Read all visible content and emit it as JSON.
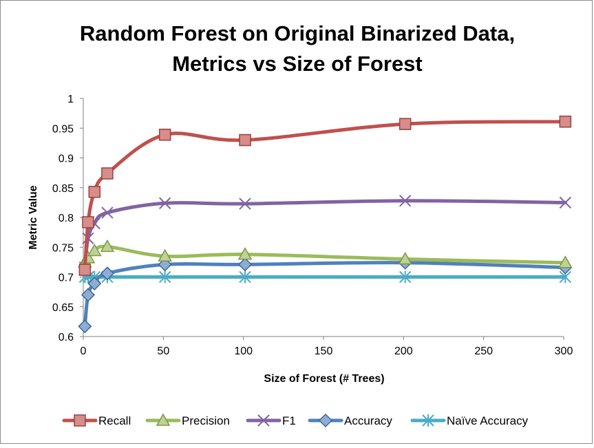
{
  "chart_data": {
    "type": "line",
    "title_lines": [
      "Random Forest on Original Binarized Data,",
      "Metrics vs Size of Forest"
    ],
    "xlabel": "Size of Forest (# Trees)",
    "ylabel": "Metric Value",
    "xlim": [
      0,
      300
    ],
    "ylim": [
      0.6,
      1
    ],
    "xticks": [
      0,
      50,
      100,
      150,
      200,
      250,
      300
    ],
    "yticks": [
      0.6,
      0.65,
      0.7,
      0.75,
      0.8,
      0.85,
      0.9,
      0.95,
      1
    ],
    "ytick_labels": [
      "0.6",
      "0.65",
      "0.7",
      "0.75",
      "0.8",
      "0.85",
      "0.9",
      "0.95",
      "1"
    ],
    "grid": false,
    "legend_position": "bottom",
    "x": [
      1,
      3,
      7,
      15,
      51,
      101,
      201,
      301
    ],
    "series": [
      {
        "name": "Recall",
        "color": "#c0504d",
        "marker": "square",
        "values": [
          0.712,
          0.792,
          0.843,
          0.874,
          0.939,
          0.93,
          0.957,
          0.961
        ]
      },
      {
        "name": "Precision",
        "color": "#9bbb59",
        "marker": "triangle",
        "values": [
          0.725,
          0.732,
          0.744,
          0.751,
          0.735,
          0.738,
          0.73,
          0.724
        ]
      },
      {
        "name": "F1",
        "color": "#8064a2",
        "marker": "x",
        "values": [
          0.716,
          0.765,
          0.79,
          0.808,
          0.824,
          0.823,
          0.828,
          0.825
        ]
      },
      {
        "name": "Accuracy",
        "color": "#4f81bd",
        "marker": "diamond",
        "values": [
          0.617,
          0.67,
          0.689,
          0.706,
          0.721,
          0.721,
          0.724,
          0.716
        ]
      },
      {
        "name": "Naïve Accuracy",
        "color": "#4bacc6",
        "marker": "asterisk",
        "values": [
          0.7,
          0.7,
          0.7,
          0.7,
          0.7,
          0.7,
          0.7,
          0.7
        ]
      }
    ]
  }
}
